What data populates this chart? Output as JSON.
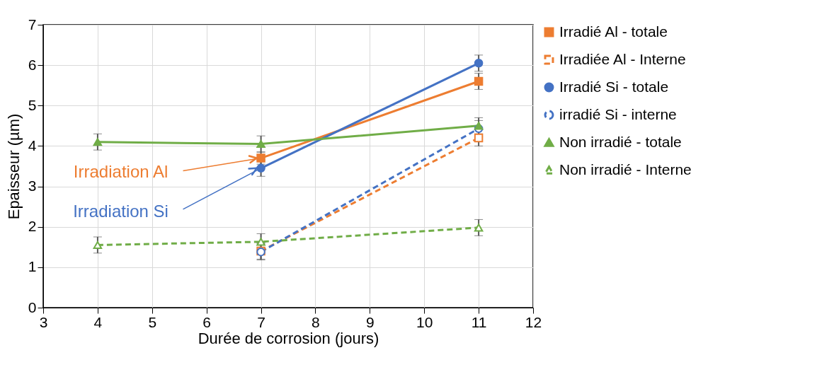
{
  "chart_data": {
    "type": "line",
    "xlabel": "Durée de corrosion (jours)",
    "ylabel": "Epaisseur (µm)",
    "x": [
      4,
      7,
      11
    ],
    "series": [
      {
        "name": "Irradié Al - totale",
        "color": "#ed7d31",
        "values": [
          null,
          3.7,
          5.6
        ],
        "errors": [
          null,
          0.15,
          0.2
        ],
        "marker": "square",
        "line_style": "solid"
      },
      {
        "name": "Irradiée Al - Interne",
        "color": "#ed7d31",
        "values": [
          null,
          1.4,
          4.2
        ],
        "errors": [
          null,
          0.2,
          0.2
        ],
        "marker": "square",
        "line_style": "dashed"
      },
      {
        "name": "Irradié Si - totale",
        "color": "#4472c4",
        "values": [
          null,
          3.45,
          6.05
        ],
        "errors": [
          null,
          0.2,
          0.2
        ],
        "marker": "circle",
        "line_style": "solid"
      },
      {
        "name": "irradié Si - interne",
        "color": "#4472c4",
        "values": [
          null,
          1.38,
          4.43
        ],
        "errors": [
          null,
          0.2,
          0.2
        ],
        "marker": "circle",
        "line_style": "dashed"
      },
      {
        "name": "Non irradié - totale",
        "color": "#70ad47",
        "values": [
          4.1,
          4.05,
          4.5
        ],
        "errors": [
          0.2,
          0.2,
          0.2
        ],
        "marker": "triangle",
        "line_style": "solid"
      },
      {
        "name": "Non irradié - Interne",
        "color": "#70ad47",
        "values": [
          1.55,
          1.63,
          1.98
        ],
        "errors": [
          0.2,
          0.2,
          0.2
        ],
        "marker": "triangle",
        "line_style": "dashed"
      }
    ],
    "xlim": [
      3,
      12
    ],
    "xticks": [
      3,
      4,
      5,
      6,
      7,
      8,
      9,
      10,
      11,
      12
    ],
    "ylim": [
      0,
      7
    ],
    "yticks": [
      0,
      1,
      2,
      3,
      4,
      5,
      6,
      7
    ],
    "grid": true,
    "legend": "right",
    "annotations": [
      {
        "text": "Irradiation Al",
        "x": 7,
        "y": 3.7
      },
      {
        "text": "Irradiation Si",
        "x": 7,
        "y": 3.45
      }
    ]
  }
}
